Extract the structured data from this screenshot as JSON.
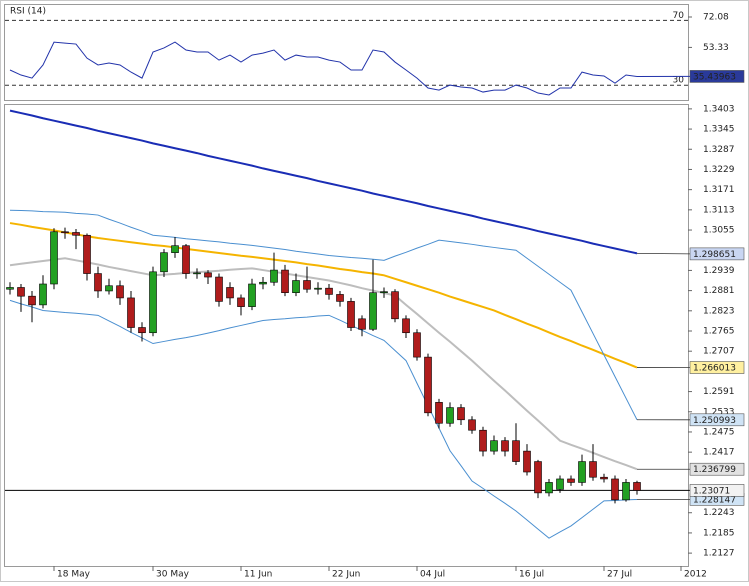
{
  "chart_data": [
    {
      "type": "line",
      "title": "RSI (14)",
      "color": "#2233aa",
      "badge_color": "#2a3a9a",
      "ylim": [
        20.9,
        80.1
      ],
      "yticks": [
        72.08,
        53.33
      ],
      "levels": [
        70,
        30
      ],
      "last_value": 35.43963,
      "values": [
        39.4,
        36.3,
        34.4,
        42.5,
        56.6,
        56.0,
        55.4,
        46.7,
        42.5,
        43.7,
        42.5,
        38.1,
        34.4,
        50.5,
        53.0,
        56.6,
        51.7,
        50.5,
        50.5,
        45.5,
        48.6,
        44.3,
        48.6,
        49.8,
        51.7,
        45.5,
        48.6,
        47.4,
        47.4,
        45.5,
        44.3,
        39.4,
        39.4,
        51.7,
        50.5,
        44.3,
        39.4,
        34.4,
        28.3,
        27.0,
        30.1,
        28.9,
        28.3,
        25.8,
        27.0,
        27.0,
        30.1,
        28.3,
        25.2,
        24.0,
        28.3,
        28.3,
        38.1,
        36.3,
        35.7,
        31.3,
        36.3,
        35.4,
        null,
        null,
        null,
        null
      ]
    },
    {
      "type": "candlestick",
      "up_color": "#22a022",
      "down_color": "#b01c1c",
      "ylim": [
        1.209,
        1.3417
      ],
      "yticks": [
        1.3403,
        1.3345,
        1.3287,
        1.3229,
        1.3171,
        1.3113,
        1.3055,
        1.2939,
        1.2881,
        1.2823,
        1.2765,
        1.2707,
        1.2591,
        1.2533,
        1.2475,
        1.2417,
        1.2243,
        1.2185,
        1.2127
      ],
      "categories": [
        null,
        null,
        null,
        null,
        "18 May",
        null,
        null,
        null,
        null,
        null,
        null,
        null,
        null,
        "30 May",
        null,
        null,
        null,
        null,
        null,
        null,
        null,
        "11 Jun",
        null,
        null,
        null,
        null,
        null,
        null,
        null,
        "22 Jun",
        null,
        null,
        null,
        null,
        null,
        null,
        null,
        "04 Jul",
        null,
        null,
        null,
        null,
        null,
        null,
        null,
        null,
        "16 Jul",
        null,
        null,
        null,
        null,
        null,
        null,
        null,
        "27 Jul",
        null,
        null,
        null,
        null,
        null,
        null,
        "2012"
      ],
      "open": [
        1.2885,
        1.289,
        1.2865,
        1.284,
        1.29,
        1.305,
        1.3048,
        1.304,
        1.293,
        1.288,
        1.2895,
        1.286,
        1.2775,
        1.276,
        1.2935,
        1.299,
        1.301,
        1.293,
        1.2932,
        1.292,
        1.289,
        1.286,
        1.2835,
        1.29,
        1.2905,
        1.294,
        1.2875,
        1.291,
        1.2885,
        1.2888,
        1.287,
        1.285,
        1.28,
        1.277,
        1.2875,
        1.2878,
        1.28,
        1.276,
        1.269,
        1.256,
        1.25,
        1.2545,
        1.251,
        1.248,
        1.242,
        1.245,
        1.245,
        1.242,
        1.239,
        1.23,
        1.231,
        1.234,
        1.233,
        1.239,
        1.2345,
        1.234,
        1.228,
        1.233,
        null,
        null,
        null,
        null
      ],
      "high": [
        1.2905,
        1.29,
        1.288,
        1.2925,
        1.306,
        1.3062,
        1.3058,
        1.3045,
        1.295,
        1.2915,
        1.291,
        1.288,
        1.279,
        1.295,
        1.3,
        1.3035,
        1.3015,
        1.2945,
        1.294,
        1.293,
        1.2905,
        1.287,
        1.2915,
        1.292,
        1.299,
        1.2955,
        1.293,
        1.295,
        1.2905,
        1.29,
        1.288,
        1.286,
        1.281,
        1.297,
        1.289,
        1.2885,
        1.281,
        1.277,
        1.27,
        1.257,
        1.256,
        1.2555,
        1.252,
        1.249,
        1.2465,
        1.246,
        1.25,
        1.244,
        1.2395,
        1.234,
        1.235,
        1.235,
        1.241,
        1.244,
        1.2355,
        1.235,
        1.234,
        1.2335,
        null,
        null,
        null,
        null
      ],
      "low": [
        1.287,
        1.282,
        1.279,
        1.283,
        1.2885,
        1.303,
        1.3,
        1.291,
        1.286,
        1.287,
        1.284,
        1.276,
        1.2735,
        1.275,
        1.292,
        1.2975,
        1.2915,
        1.2915,
        1.29,
        1.2835,
        1.284,
        1.281,
        1.2825,
        1.2885,
        1.2895,
        1.2865,
        1.2865,
        1.2875,
        1.287,
        1.2855,
        1.2835,
        1.2765,
        1.275,
        1.2765,
        1.286,
        1.279,
        1.2745,
        1.268,
        1.252,
        1.2485,
        1.249,
        1.2495,
        1.247,
        1.2405,
        1.241,
        1.2405,
        1.238,
        1.235,
        1.2285,
        1.229,
        1.23,
        1.232,
        1.232,
        1.2335,
        1.233,
        1.227,
        1.2275,
        1.2295,
        null,
        null,
        null,
        null
      ],
      "close": [
        1.289,
        1.2865,
        1.284,
        1.29,
        1.305,
        1.3048,
        1.304,
        1.293,
        1.288,
        1.2895,
        1.286,
        1.2775,
        1.276,
        1.2935,
        1.299,
        1.301,
        1.293,
        1.2932,
        1.292,
        1.285,
        1.286,
        1.2835,
        1.29,
        1.2905,
        1.294,
        1.2875,
        1.291,
        1.2885,
        1.2888,
        1.287,
        1.285,
        1.2775,
        1.277,
        1.2875,
        1.2878,
        1.28,
        1.276,
        1.269,
        1.253,
        1.25,
        1.2545,
        1.251,
        1.248,
        1.242,
        1.245,
        1.242,
        1.239,
        1.236,
        1.23,
        1.233,
        1.234,
        1.233,
        1.239,
        1.2345,
        1.234,
        1.228,
        1.233,
        1.2307,
        null,
        null,
        null,
        null
      ],
      "last_price": 1.23071,
      "last_price_badge": "#f2f2f2",
      "overlays": [
        {
          "color": "#1a2db5",
          "width": 2,
          "badge_color": "#c9d6f2",
          "last_value": 1.298651,
          "values": [
            1.3398,
            1.3391,
            1.3384,
            1.3376,
            1.3369,
            1.3362,
            1.3355,
            1.3348,
            1.334,
            1.3333,
            1.3326,
            1.3319,
            1.3312,
            1.3304,
            1.3297,
            1.329,
            1.3283,
            1.3276,
            1.3268,
            1.3261,
            1.3254,
            1.3247,
            1.324,
            1.3232,
            1.3225,
            1.3218,
            1.3211,
            1.3204,
            1.3196,
            1.3189,
            1.3182,
            1.3175,
            1.3168,
            1.316,
            1.3153,
            1.3146,
            1.3139,
            1.3132,
            1.3124,
            1.3117,
            1.311,
            1.3103,
            1.3096,
            1.3088,
            1.3081,
            1.3074,
            1.3067,
            1.306,
            1.3052,
            1.3045,
            1.3038,
            1.3031,
            1.3024,
            1.3016,
            1.3009,
            1.3002,
            1.2995,
            1.2988,
            null,
            null,
            null,
            null
          ]
        },
        {
          "color": "#f5b400",
          "width": 2,
          "badge_color": "#fff0a0",
          "last_value": 1.266013,
          "values": [
            1.3075,
            1.307,
            1.3064,
            1.3059,
            1.3054,
            1.3048,
            1.3043,
            1.3037,
            1.3032,
            1.3028,
            1.3024,
            1.302,
            1.3016,
            1.3012,
            1.3009,
            1.3005,
            1.3001,
            1.2997,
            1.2993,
            1.2989,
            1.2985,
            1.2981,
            1.2978,
            1.2974,
            1.297,
            1.2966,
            1.2962,
            1.2957,
            1.2953,
            1.2948,
            1.2943,
            1.2939,
            1.2934,
            1.293,
            1.2925,
            1.2915,
            1.2905,
            1.2895,
            1.2885,
            1.2875,
            1.2864,
            1.2854,
            1.2844,
            1.2834,
            1.2824,
            1.2811,
            1.2799,
            1.2786,
            1.2774,
            1.2761,
            1.2748,
            1.2736,
            1.2723,
            1.2711,
            1.2698,
            1.2685,
            1.2673,
            1.266,
            null,
            null,
            null,
            null
          ]
        },
        {
          "color": "#4a8fd0",
          "width": 1,
          "badge_color": "#cfe3f5",
          "last_value": 1.250993,
          "values": [
            1.3112,
            1.3111,
            1.311,
            1.3108,
            1.3107,
            1.3106,
            1.3103,
            1.3101,
            1.3098,
            1.3086,
            1.3075,
            1.3063,
            1.3052,
            1.304,
            1.3037,
            1.3034,
            1.303,
            1.3027,
            1.3024,
            1.3021,
            1.3017,
            1.3014,
            1.3011,
            1.3007,
            1.3003,
            1.2999,
            1.2994,
            1.299,
            1.2986,
            1.2982,
            1.2979,
            1.2976,
            1.2974,
            1.2971,
            1.2968,
            1.298,
            1.2991,
            1.3003,
            1.3014,
            1.3026,
            1.3022,
            1.3018,
            1.3014,
            1.3009,
            1.3005,
            1.3001,
            1.2997,
            1.2974,
            1.2951,
            1.2928,
            1.2905,
            1.2882,
            1.282,
            1.2758,
            1.2696,
            1.2634,
            1.2572,
            1.251,
            null,
            null,
            null,
            null
          ]
        },
        {
          "color": "#bdbdbd",
          "width": 2,
          "badge_color": "#e2e2e2",
          "last_value": 1.236799,
          "values": [
            1.2954,
            1.2958,
            1.2962,
            1.2966,
            1.297,
            1.2974,
            1.2968,
            1.2962,
            1.2956,
            1.2949,
            1.2943,
            1.2937,
            1.2931,
            1.2925,
            1.2927,
            1.2929,
            1.2932,
            1.2934,
            1.2936,
            1.2938,
            1.2941,
            1.2943,
            1.2945,
            1.294,
            1.2935,
            1.293,
            1.2925,
            1.292,
            1.2915,
            1.291,
            1.2903,
            1.2896,
            1.2888,
            1.2881,
            1.2874,
            1.2867,
            1.284,
            1.2814,
            1.2787,
            1.276,
            1.2734,
            1.2707,
            1.268,
            1.2651,
            1.2622,
            1.2594,
            1.2565,
            1.2536,
            1.2508,
            1.2479,
            1.245,
            1.2438,
            1.2427,
            1.2415,
            1.2403,
            1.2391,
            1.238,
            1.2368,
            null,
            null,
            null,
            null
          ]
        },
        {
          "color": "#4a8fd0",
          "width": 1,
          "badge_color": "#cfe3f5",
          "last_value": 1.228147,
          "values": [
            1.2853,
            1.2843,
            1.2834,
            1.2824,
            1.2821,
            1.2818,
            1.2816,
            1.2813,
            1.281,
            1.2794,
            1.2778,
            1.2761,
            1.2745,
            1.2729,
            1.2735,
            1.2741,
            1.2746,
            1.2752,
            1.2759,
            1.2766,
            1.2774,
            1.2781,
            1.2788,
            1.2795,
            1.2798,
            1.28,
            1.2803,
            1.2805,
            1.2808,
            1.281,
            1.2796,
            1.2781,
            1.2767,
            1.2752,
            1.2738,
            1.2709,
            1.268,
            1.2615,
            1.255,
            1.2486,
            1.2421,
            1.2378,
            1.2334,
            1.2313,
            1.2291,
            1.227,
            1.2248,
            1.2222,
            1.2196,
            1.217,
            1.2188,
            1.2205,
            1.2229,
            1.2253,
            1.2277,
            1.2278,
            1.228,
            1.2281,
            null,
            null,
            null,
            null
          ]
        }
      ]
    }
  ]
}
